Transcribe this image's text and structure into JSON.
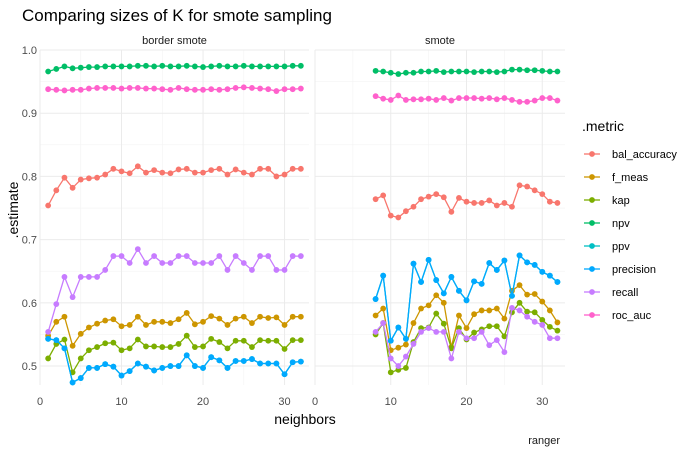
{
  "chart_data": {
    "type": "line",
    "title": "Comparing sizes of K for smote sampling",
    "xlabel": "neighbors",
    "ylabel": ".estimate",
    "caption": "ranger",
    "xlim": [
      0,
      33
    ],
    "ylim": [
      0.47,
      1.0
    ],
    "xticks": [
      0,
      10,
      20,
      30
    ],
    "yticks": [
      0.5,
      0.6,
      0.7,
      0.8,
      0.9,
      1.0
    ],
    "grid": true,
    "legend": {
      "title": ".metric",
      "position": "right"
    },
    "metric_colors": {
      "bal_accuracy": "#F8766D",
      "f_meas": "#CD9600",
      "kap": "#7CAE00",
      "npv": "#00BE67",
      "ppv": "#00BFC4",
      "precision": "#00A9FF",
      "recall": "#C77CFF",
      "roc_auc": "#FF61CC"
    },
    "panels": [
      {
        "name": "border smote",
        "x": [
          1,
          2,
          3,
          4,
          5,
          6,
          7,
          8,
          9,
          10,
          11,
          12,
          13,
          14,
          15,
          16,
          17,
          18,
          19,
          20,
          21,
          22,
          23,
          24,
          25,
          26,
          27,
          28,
          29,
          30,
          31,
          32
        ],
        "series": [
          {
            "name": "bal_accuracy",
            "values": [
              0.754,
              0.778,
              0.798,
              0.782,
              0.795,
              0.797,
              0.798,
              0.803,
              0.812,
              0.808,
              0.805,
              0.816,
              0.806,
              0.81,
              0.806,
              0.805,
              0.811,
              0.812,
              0.806,
              0.806,
              0.81,
              0.812,
              0.803,
              0.811,
              0.806,
              0.803,
              0.812,
              0.812,
              0.8,
              0.803,
              0.812,
              0.812
            ]
          },
          {
            "name": "f_meas",
            "values": [
              0.548,
              0.57,
              0.578,
              0.532,
              0.551,
              0.561,
              0.567,
              0.572,
              0.574,
              0.563,
              0.565,
              0.578,
              0.565,
              0.57,
              0.57,
              0.568,
              0.574,
              0.584,
              0.566,
              0.57,
              0.579,
              0.575,
              0.565,
              0.575,
              0.578,
              0.568,
              0.578,
              0.576,
              0.577,
              0.565,
              0.578,
              0.578
            ]
          },
          {
            "name": "kap",
            "values": [
              0.512,
              0.535,
              0.542,
              0.49,
              0.512,
              0.525,
              0.53,
              0.536,
              0.537,
              0.525,
              0.528,
              0.542,
              0.531,
              0.531,
              0.53,
              0.53,
              0.535,
              0.548,
              0.53,
              0.531,
              0.543,
              0.538,
              0.528,
              0.54,
              0.54,
              0.53,
              0.541,
              0.54,
              0.54,
              0.527,
              0.541,
              0.541
            ]
          },
          {
            "name": "npv",
            "values": [
              0.966,
              0.97,
              0.974,
              0.971,
              0.972,
              0.973,
              0.973,
              0.974,
              0.974,
              0.974,
              0.974,
              0.975,
              0.975,
              0.974,
              0.975,
              0.974,
              0.974,
              0.975,
              0.974,
              0.973,
              0.974,
              0.975,
              0.974,
              0.974,
              0.975,
              0.974,
              0.974,
              0.974,
              0.974,
              0.974,
              0.975,
              0.975
            ]
          },
          {
            "name": "ppv",
            "values": [
              0.543,
              0.541,
              0.528,
              0.474,
              0.481,
              0.497,
              0.497,
              0.503,
              0.499,
              0.485,
              0.492,
              0.504,
              0.499,
              0.493,
              0.497,
              0.5,
              0.5,
              0.517,
              0.5,
              0.497,
              0.514,
              0.509,
              0.497,
              0.508,
              0.508,
              0.511,
              0.504,
              0.504,
              0.504,
              0.487,
              0.506,
              0.507
            ]
          },
          {
            "name": "precision",
            "values": [
              0.543,
              0.541,
              0.528,
              0.474,
              0.481,
              0.497,
              0.497,
              0.503,
              0.499,
              0.485,
              0.492,
              0.504,
              0.499,
              0.493,
              0.497,
              0.5,
              0.5,
              0.517,
              0.5,
              0.497,
              0.514,
              0.509,
              0.497,
              0.508,
              0.508,
              0.511,
              0.504,
              0.504,
              0.504,
              0.487,
              0.506,
              0.507
            ]
          },
          {
            "name": "recall",
            "values": [
              0.554,
              0.598,
              0.641,
              0.609,
              0.641,
              0.641,
              0.641,
              0.652,
              0.674,
              0.674,
              0.663,
              0.685,
              0.663,
              0.674,
              0.663,
              0.663,
              0.674,
              0.674,
              0.663,
              0.663,
              0.663,
              0.674,
              0.652,
              0.674,
              0.663,
              0.652,
              0.674,
              0.674,
              0.652,
              0.652,
              0.674,
              0.674
            ]
          },
          {
            "name": "roc_auc",
            "values": [
              0.938,
              0.937,
              0.936,
              0.937,
              0.937,
              0.939,
              0.94,
              0.94,
              0.94,
              0.939,
              0.94,
              0.94,
              0.939,
              0.939,
              0.938,
              0.937,
              0.94,
              0.938,
              0.937,
              0.937,
              0.938,
              0.937,
              0.938,
              0.94,
              0.941,
              0.94,
              0.939,
              0.938,
              0.935,
              0.938,
              0.938,
              0.939
            ]
          }
        ]
      },
      {
        "name": "smote",
        "x": [
          8,
          9,
          10,
          11,
          12,
          13,
          14,
          15,
          16,
          17,
          18,
          19,
          20,
          21,
          22,
          23,
          24,
          25,
          26,
          27,
          28,
          29,
          30,
          31,
          32
        ],
        "series": [
          {
            "name": "bal_accuracy",
            "values": [
              0.764,
              0.77,
              0.738,
              0.735,
              0.745,
              0.752,
              0.764,
              0.768,
              0.772,
              0.767,
              0.744,
              0.766,
              0.76,
              0.758,
              0.758,
              0.762,
              0.754,
              0.758,
              0.752,
              0.786,
              0.784,
              0.778,
              0.772,
              0.76,
              0.758
            ]
          },
          {
            "name": "f_meas",
            "values": [
              0.58,
              0.591,
              0.525,
              0.529,
              0.534,
              0.568,
              0.591,
              0.596,
              0.612,
              0.6,
              0.53,
              0.58,
              0.56,
              0.582,
              0.588,
              0.588,
              0.591,
              0.575,
              0.619,
              0.628,
              0.613,
              0.614,
              0.602,
              0.588,
              0.569
            ]
          },
          {
            "name": "kap",
            "values": [
              0.55,
              0.568,
              0.49,
              0.494,
              0.497,
              0.538,
              0.56,
              0.561,
              0.583,
              0.567,
              0.528,
              0.56,
              0.542,
              0.553,
              0.558,
              0.563,
              0.563,
              0.547,
              0.585,
              0.6,
              0.586,
              0.585,
              0.573,
              0.562,
              0.556
            ]
          },
          {
            "name": "npv",
            "values": [
              0.967,
              0.966,
              0.964,
              0.962,
              0.964,
              0.964,
              0.966,
              0.966,
              0.967,
              0.965,
              0.966,
              0.966,
              0.966,
              0.965,
              0.966,
              0.966,
              0.965,
              0.966,
              0.969,
              0.969,
              0.968,
              0.968,
              0.967,
              0.966,
              0.966
            ]
          },
          {
            "name": "ppv",
            "values": [
              0.606,
              0.643,
              0.54,
              0.561,
              0.543,
              0.662,
              0.633,
              0.668,
              0.636,
              0.615,
              0.641,
              0.619,
              0.604,
              0.634,
              0.63,
              0.663,
              0.652,
              0.667,
              0.611,
              0.675,
              0.664,
              0.66,
              0.649,
              0.643,
              0.633
            ]
          },
          {
            "name": "precision",
            "values": [
              0.606,
              0.643,
              0.54,
              0.561,
              0.543,
              0.662,
              0.633,
              0.668,
              0.636,
              0.615,
              0.641,
              0.619,
              0.604,
              0.634,
              0.63,
              0.663,
              0.652,
              0.667,
              0.611,
              0.675,
              0.664,
              0.66,
              0.649,
              0.643,
              0.633
            ]
          },
          {
            "name": "recall",
            "values": [
              0.554,
              0.568,
              0.512,
              0.5,
              0.515,
              0.535,
              0.554,
              0.56,
              0.554,
              0.554,
              0.512,
              0.554,
              0.544,
              0.544,
              0.554,
              0.533,
              0.541,
              0.522,
              0.592,
              0.588,
              0.578,
              0.57,
              0.565,
              0.544,
              0.544
            ]
          },
          {
            "name": "roc_auc",
            "values": [
              0.927,
              0.923,
              0.921,
              0.928,
              0.921,
              0.922,
              0.922,
              0.923,
              0.921,
              0.924,
              0.92,
              0.924,
              0.924,
              0.924,
              0.923,
              0.924,
              0.922,
              0.924,
              0.921,
              0.918,
              0.918,
              0.92,
              0.924,
              0.924,
              0.92
            ]
          }
        ]
      }
    ]
  }
}
